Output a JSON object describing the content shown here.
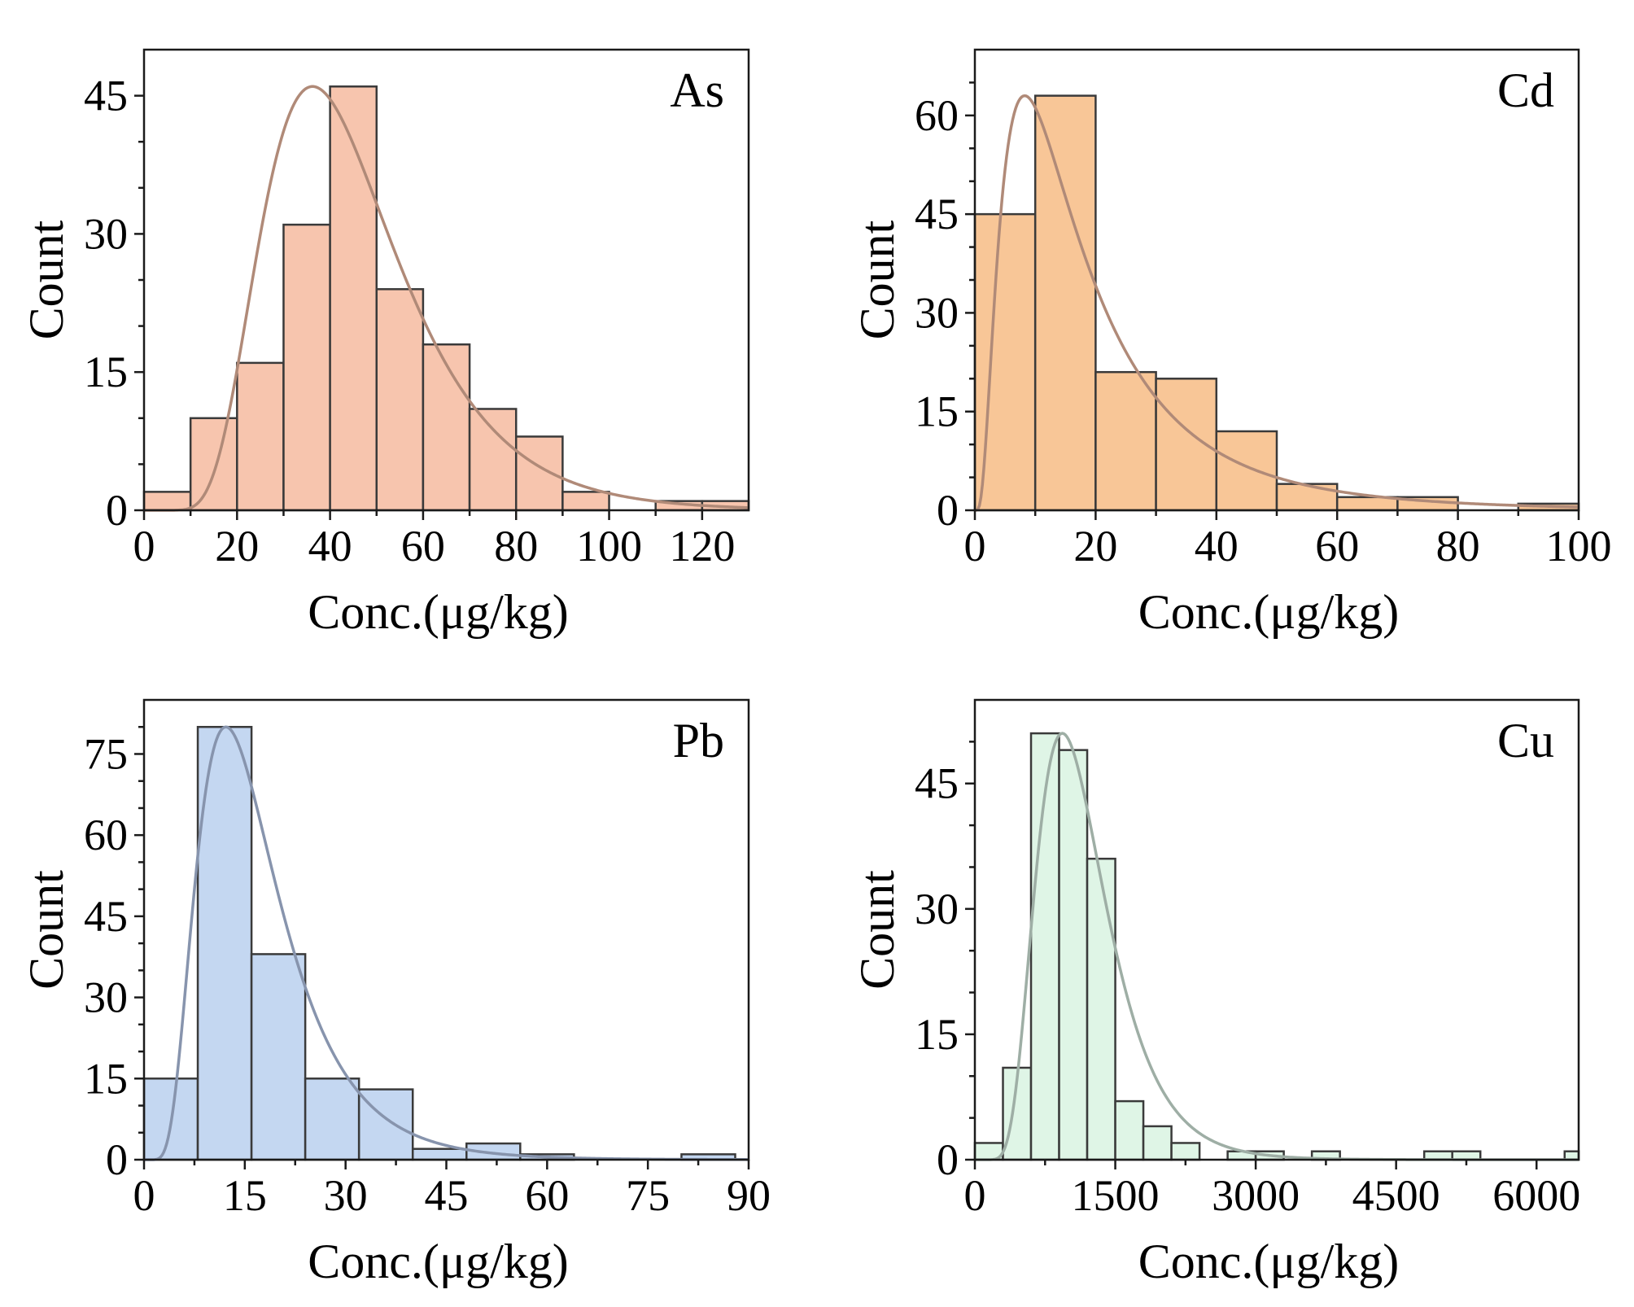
{
  "chart_data": [
    {
      "type": "bar",
      "panel_label": "As",
      "xlabel": "Conc.(μg/kg)",
      "ylabel": "Count",
      "bin_width": 10,
      "bins": [
        0,
        10,
        20,
        30,
        40,
        50,
        60,
        70,
        80,
        90,
        100,
        110,
        120
      ],
      "values": [
        2,
        10,
        16,
        31,
        46,
        24,
        18,
        11,
        8,
        2,
        0,
        1,
        1
      ],
      "xlim": [
        0,
        130
      ],
      "ylim": [
        0,
        50
      ],
      "xticks": [
        0,
        20,
        40,
        60,
        80,
        100,
        120
      ],
      "yticks": [
        0,
        15,
        30,
        45
      ],
      "bar_color": "#f7c5ae",
      "curve_color": "#b08a78",
      "curve": {
        "type": "lognormal",
        "mu": 3.75,
        "sigma": 0.4,
        "peak": 46
      }
    },
    {
      "type": "bar",
      "panel_label": "Cd",
      "xlabel": "Conc.(μg/kg)",
      "ylabel": "Count",
      "bin_width": 10,
      "bins": [
        0,
        10,
        20,
        30,
        40,
        50,
        60,
        70,
        80,
        90
      ],
      "values": [
        45,
        63,
        21,
        20,
        12,
        4,
        2,
        2,
        0,
        1
      ],
      "xlim": [
        0,
        100
      ],
      "ylim": [
        0,
        70
      ],
      "xticks": [
        0,
        20,
        40,
        60,
        80,
        100
      ],
      "yticks": [
        0,
        15,
        30,
        45,
        60
      ],
      "bar_color": "#f8c697",
      "curve_color": "#b08a78",
      "curve": {
        "type": "lognormal",
        "mu": 2.75,
        "sigma": 0.8,
        "peak": 63
      }
    },
    {
      "type": "bar",
      "panel_label": "Pb",
      "xlabel": "Conc.(μg/kg)",
      "ylabel": "Count",
      "bin_width": 8,
      "bins": [
        0,
        8,
        16,
        24,
        32,
        40,
        48,
        56,
        64,
        72,
        80
      ],
      "values": [
        15,
        80,
        38,
        15,
        13,
        2,
        3,
        1,
        0,
        0,
        1
      ],
      "xlim": [
        0,
        90
      ],
      "ylim": [
        0,
        85
      ],
      "xticks": [
        0,
        15,
        30,
        45,
        60,
        75,
        90
      ],
      "yticks": [
        0,
        15,
        30,
        45,
        60,
        75
      ],
      "bar_color": "#c4d7f1",
      "curve_color": "#8794ad",
      "curve": {
        "type": "lognormal",
        "mu": 2.75,
        "sigma": 0.5,
        "peak": 80
      }
    },
    {
      "type": "bar",
      "panel_label": "Cu",
      "xlabel": "Conc.(μg/kg)",
      "ylabel": "Count",
      "bin_width": 300,
      "bins": [
        0,
        300,
        600,
        900,
        1200,
        1500,
        1800,
        2100,
        2400,
        2700,
        3000,
        3300,
        3600,
        3900,
        4200,
        4500,
        4800,
        5100,
        5400,
        5700,
        6000,
        6300
      ],
      "values": [
        2,
        11,
        51,
        49,
        36,
        7,
        4,
        2,
        0,
        1,
        1,
        0,
        1,
        0,
        0,
        0,
        1,
        1,
        0,
        0,
        0,
        1
      ],
      "xlim": [
        0,
        6450
      ],
      "ylim": [
        0,
        55
      ],
      "xticks": [
        0,
        1500,
        3000,
        4500,
        6000
      ],
      "yticks": [
        0,
        15,
        30,
        45
      ],
      "bar_color": "#dff5e6",
      "curve_color": "#9eaea5",
      "curve": {
        "type": "lognormal",
        "mu": 7.0,
        "sigma": 0.4,
        "peak": 51
      }
    }
  ]
}
